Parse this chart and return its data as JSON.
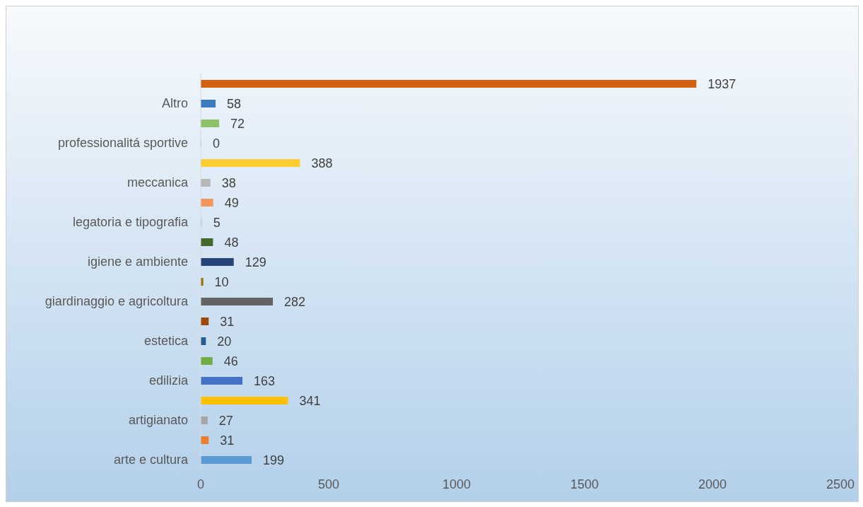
{
  "chart_data": {
    "type": "bar",
    "orientation": "horizontal",
    "categories": [
      null,
      "Altro",
      null,
      "professionalitá sportive",
      null,
      "meccanica",
      null,
      "legatoria e tipografia",
      null,
      "igiene e ambiente",
      null,
      "giardinaggio e agricoltura",
      null,
      "estetica",
      null,
      "edilizia",
      null,
      "artigianato",
      null,
      "arte e cultura"
    ],
    "values": [
      1937,
      58,
      72,
      0,
      388,
      38,
      49,
      5,
      48,
      129,
      10,
      282,
      31,
      20,
      46,
      163,
      341,
      27,
      31,
      199
    ],
    "colors": [
      "#d26012",
      "#3a7cc0",
      "#8cc168",
      "#bcbcbc",
      "#ffcd33",
      "#b7b7b7",
      "#f1975a",
      "#b4cfee",
      "#43682b",
      "#264478",
      "#997300",
      "#636363",
      "#9e480e",
      "#255e91",
      "#70ad47",
      "#4472c4",
      "#ffc000",
      "#a5a5a5",
      "#ed7d31",
      "#5b9bd5"
    ],
    "xlim": [
      0,
      2500
    ],
    "xticks": [
      0,
      500,
      1000,
      1500,
      2000,
      2500
    ],
    "data_labels": true,
    "grid": false,
    "legend": false
  }
}
